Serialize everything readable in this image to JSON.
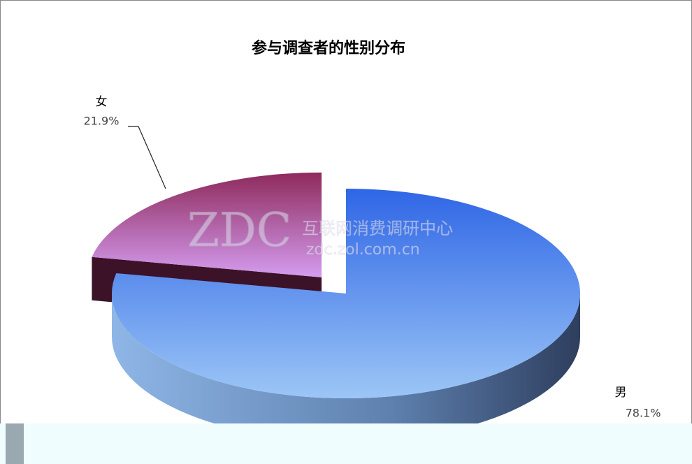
{
  "chart_data": {
    "type": "pie",
    "title": "参与调查者的性别分布",
    "categories": [
      "男",
      "女"
    ],
    "values": [
      78.1,
      21.9
    ],
    "value_labels": [
      "78.1%",
      "21.9%"
    ],
    "colors": [
      "#5b8ff0",
      "#a4509a"
    ],
    "watermark": [
      "ZDC",
      "互联网消费调研中心",
      "zdc.zol.com.cn"
    ]
  }
}
